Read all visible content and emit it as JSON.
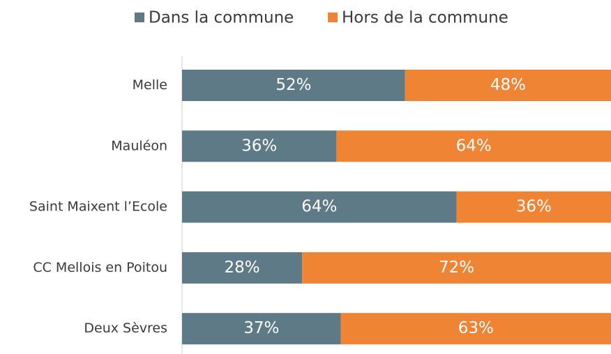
{
  "chart_data": {
    "type": "stacked-bar-horizontal",
    "categories": [
      "Melle",
      "Mauléon",
      "Saint Maixent l’Ecole",
      "CC Mellois en Poitou",
      "Deux Sèvres"
    ],
    "series": [
      {
        "name": "Dans la commune",
        "color": "#5f7a87",
        "values": [
          52,
          36,
          64,
          28,
          37
        ],
        "value_labels": [
          "52%",
          "36%",
          "64%",
          "28%",
          "37%"
        ]
      },
      {
        "name": "Hors de la commune",
        "color": "#ef8434",
        "values": [
          48,
          64,
          36,
          72,
          63
        ],
        "value_labels": [
          "48%",
          "64%",
          "36%",
          "72%",
          "63%"
        ]
      }
    ],
    "xlim": [
      0,
      100
    ],
    "legend": "top"
  }
}
